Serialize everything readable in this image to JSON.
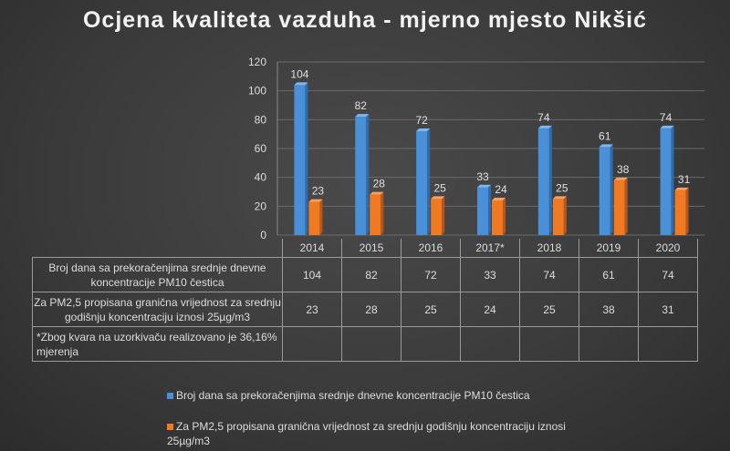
{
  "chart_data": {
    "type": "bar",
    "title": "Ocjena kvaliteta vazduha - mjerno mjesto Nikšić",
    "categories": [
      "2014",
      "2015",
      "2016",
      "2017*",
      "2018",
      "2019",
      "2020"
    ],
    "yticks": [
      "0",
      "20",
      "40",
      "60",
      "80",
      "100",
      "120"
    ],
    "ylim": [
      0,
      120
    ],
    "grid": true,
    "series": [
      {
        "name": "Broj dana sa prekoračenjima srednje dnevne koncentracije  PM10 čestica",
        "color": "#4a90d9",
        "values": [
          104,
          82,
          72,
          33,
          74,
          61,
          74
        ]
      },
      {
        "name": "Za PM2,5 propisana granična vrijednost za srednju godišnju koncentraciju iznosi 25µg/m3",
        "color": "#ef7a22",
        "values": [
          23,
          28,
          25,
          24,
          25,
          38,
          31
        ]
      }
    ],
    "table_note": "*Zbog kvara na uzorkivaču realizovano je 36,16% mjerenja",
    "legend_position": "bottom"
  }
}
